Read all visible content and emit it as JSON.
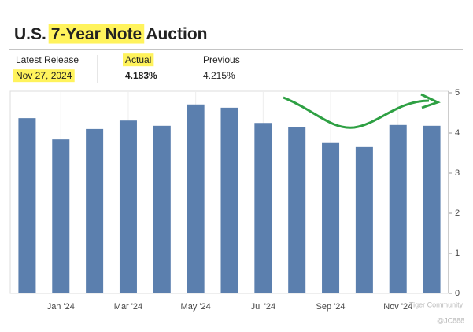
{
  "chart_data": {
    "type": "bar",
    "title_parts": [
      "U.S.",
      "7-Year Note",
      "Auction"
    ],
    "stats": [
      {
        "label": "Latest Release",
        "value": "Nov 27, 2024"
      },
      {
        "label": "Actual",
        "value": "4.183%"
      },
      {
        "label": "Previous",
        "value": "4.215%"
      }
    ],
    "categories": [
      null,
      "Jan '24",
      null,
      "Mar '24",
      null,
      "May '24",
      null,
      "Jul '24",
      null,
      "Sep '24",
      null,
      "Nov '24",
      null
    ],
    "values": [
      4.37,
      3.84,
      4.1,
      4.31,
      4.18,
      4.71,
      4.63,
      4.25,
      4.14,
      3.75,
      3.65,
      4.2,
      4.18
    ],
    "color": "#5b7fae",
    "ylim": [
      0,
      5
    ],
    "yticks": [
      0,
      1,
      2,
      3,
      4,
      5
    ],
    "grid": true,
    "watermark": [
      "Tiger Community",
      "@JC888"
    ]
  }
}
